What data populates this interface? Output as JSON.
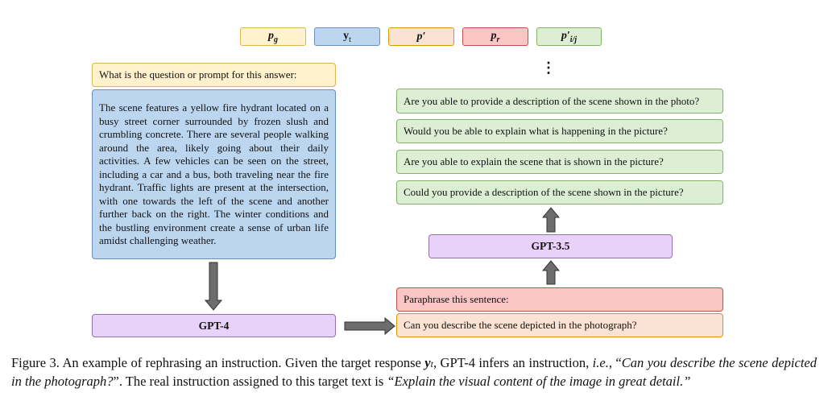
{
  "legend": [
    {
      "label": "p_g",
      "color": "#fff2cc"
    },
    {
      "label": "y_t",
      "color": "#bcd6ef"
    },
    {
      "label": "p′",
      "color": "#fbe3d3"
    },
    {
      "label": "p_r",
      "color": "#f9c5c5"
    },
    {
      "label": "p′_i/j",
      "color": "#dcefd4"
    }
  ],
  "left": {
    "prompt": "What is the question or prompt for this answer:",
    "response": "The scene features a yellow fire hydrant located on a busy street corner surrounded by frozen slush and crumbling concrete. There are several people walking around the area, likely going about their daily activities. A few vehicles can be seen on the street, including a car and a bus, both traveling near the fire hydrant. Traffic lights are present at the intersection, with one towards the left of the scene and another further back on the right. The winter conditions and the bustling environment create a sense of urban life amidst challenging weather.",
    "model": "GPT-4"
  },
  "right": {
    "ellipsis": "⋮",
    "paraphrases": [
      "Are you able to provide a description of the scene shown in the photo?",
      "Would you be able to explain what is happening in the picture?",
      "Are you able to explain the scene that is shown in the picture?",
      "Could you provide a description of the scene shown in the picture?"
    ],
    "model": "GPT-3.5",
    "paraphrase_prompt": "Paraphrase this sentence:",
    "inferred_instruction": "Can you describe the scene depicted in the photograph?"
  },
  "caption": {
    "lead": "Figure 3. An example of rephrasing an instruction. Given the target response ",
    "mid": ", GPT-4 infers an instruction, ",
    "ie": "i.e.",
    "q1": ", “",
    "quote1": "Can you describe the scene depicted in the photograph?",
    "q2": "”. The real instruction assigned to this target text is ",
    "quote2": "“Explain the visual content of the image in great detail.”"
  }
}
